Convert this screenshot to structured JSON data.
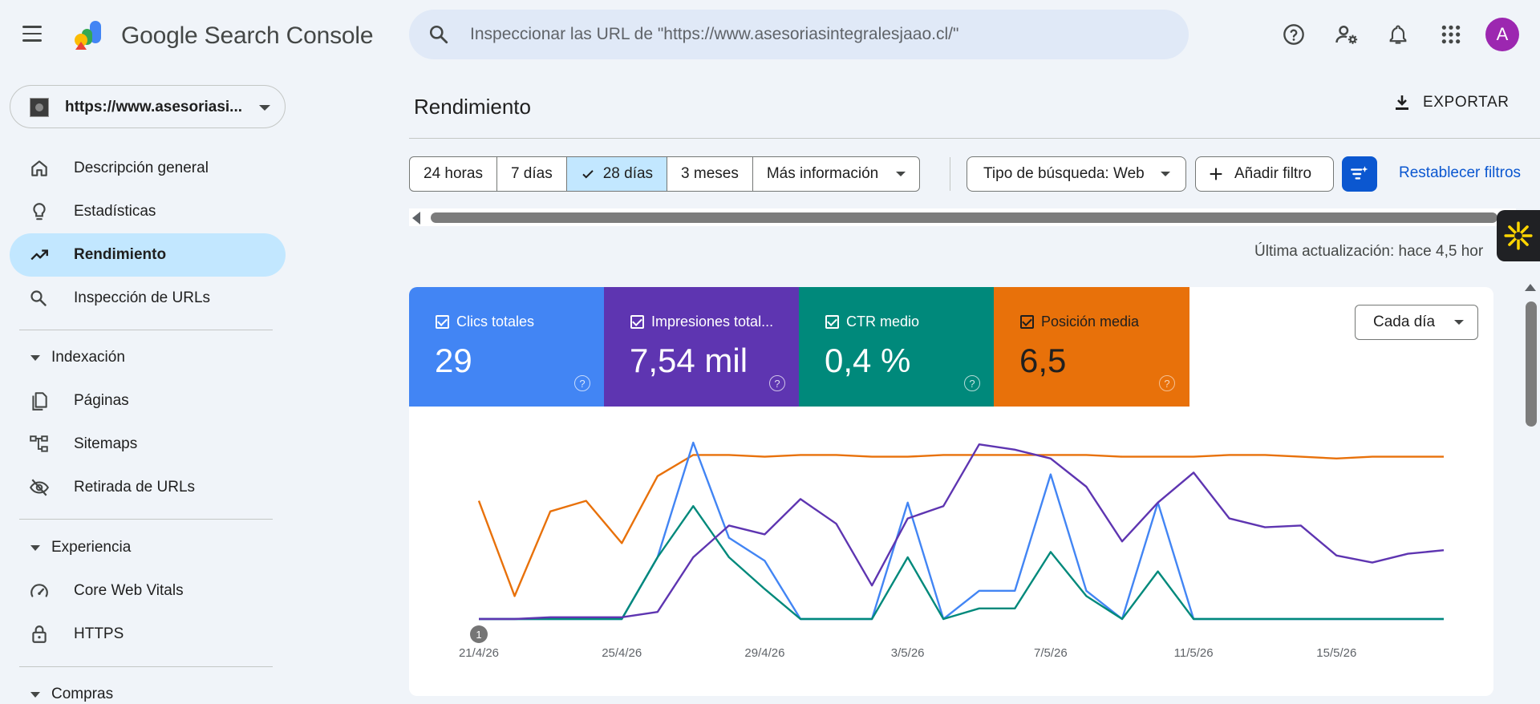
{
  "app": {
    "title": "Google Search Console"
  },
  "search": {
    "placeholder": "Inspeccionar las URL de \"https://www.asesoriasintegralesjaao.cl/\""
  },
  "account": {
    "initial": "A"
  },
  "property": {
    "label": "https://www.asesoriasi..."
  },
  "sidebar": {
    "items": [
      {
        "label": "Descripción general",
        "icon": "home-icon"
      },
      {
        "label": "Estadísticas",
        "icon": "lightbulb-icon"
      },
      {
        "label": "Rendimiento",
        "icon": "trending-up-icon",
        "active": true
      },
      {
        "label": "Inspección de URLs",
        "icon": "search-icon"
      }
    ],
    "sections": [
      {
        "title": "Indexación",
        "items": [
          {
            "label": "Páginas",
            "icon": "pages-icon"
          },
          {
            "label": "Sitemaps",
            "icon": "sitemap-icon"
          },
          {
            "label": "Retirada de URLs",
            "icon": "eye-off-icon"
          }
        ]
      },
      {
        "title": "Experiencia",
        "items": [
          {
            "label": "Core Web Vitals",
            "icon": "speed-icon"
          },
          {
            "label": "HTTPS",
            "icon": "lock-icon"
          }
        ]
      },
      {
        "title": "Compras",
        "items": []
      }
    ]
  },
  "main": {
    "title": "Rendimiento",
    "export_label": "EXPORTAR",
    "date_ranges": [
      "24 horas",
      "7 días",
      "28 días",
      "3 meses",
      "Más información"
    ],
    "selected_range": "28 días",
    "search_type": "Tipo de búsqueda: Web",
    "add_filter": "Añadir filtro",
    "reset_filters": "Restablecer filtros",
    "updated": "Última actualización: hace 4,5 hor",
    "granularity": "Cada día"
  },
  "metrics": [
    {
      "label": "Clics totales",
      "value": "29",
      "color": "#4285f4"
    },
    {
      "label": "Impresiones total...",
      "value": "7,54 mil",
      "color": "#5e35b1"
    },
    {
      "label": "CTR medio",
      "value": "0,4 %",
      "color": "#00897b"
    },
    {
      "label": "Posición media",
      "value": "6,5",
      "color": "#e8710a"
    }
  ],
  "annotation_marker": "1",
  "chart_data": {
    "type": "line",
    "x": [
      "21/4/26",
      "22/4/26",
      "23/4/26",
      "24/4/26",
      "25/4/26",
      "26/4/26",
      "27/4/26",
      "28/4/26",
      "29/4/26",
      "30/4/26",
      "1/5/26",
      "2/5/26",
      "3/5/26",
      "4/5/26",
      "5/5/26",
      "6/5/26",
      "7/5/26",
      "8/5/26",
      "9/5/26",
      "10/5/26",
      "11/5/26",
      "12/5/26",
      "13/5/26",
      "14/5/26",
      "15/5/26",
      "16/5/26",
      "17/5/26",
      "18/5/26"
    ],
    "xtick_labels": [
      "21/4/26",
      "25/4/26",
      "29/4/26",
      "3/5/26",
      "7/5/26",
      "11/5/26",
      "15/5/26"
    ],
    "normalized": true,
    "ylim": [
      0,
      1
    ],
    "series": [
      {
        "name": "Clics totales",
        "color": "#4285f4",
        "values": [
          0,
          0,
          0,
          0,
          0,
          0.35,
          1.0,
          0.46,
          0.33,
          0,
          0,
          0,
          0.66,
          0,
          0.16,
          0.16,
          0.82,
          0.16,
          0,
          0.66,
          0,
          0,
          0,
          0,
          0,
          0,
          0,
          0
        ]
      },
      {
        "name": "Impresiones totales",
        "color": "#5e35b1",
        "values": [
          0,
          0,
          0.01,
          0.01,
          0.01,
          0.04,
          0.35,
          0.53,
          0.48,
          0.68,
          0.54,
          0.19,
          0.57,
          0.64,
          0.99,
          0.96,
          0.91,
          0.75,
          0.44,
          0.66,
          0.83,
          0.57,
          0.52,
          0.53,
          0.36,
          0.32,
          0.37,
          0.39
        ]
      },
      {
        "name": "CTR medio",
        "color": "#00897b",
        "values": [
          0,
          0,
          0,
          0,
          0,
          0.35,
          0.64,
          0.35,
          0.17,
          0,
          0,
          0,
          0.35,
          0,
          0.06,
          0.06,
          0.38,
          0.13,
          0,
          0.27,
          0,
          0,
          0,
          0,
          0,
          0,
          0,
          0
        ]
      },
      {
        "name": "Posición media",
        "color": "#e8710a",
        "values": [
          0.67,
          0.13,
          0.61,
          0.67,
          0.43,
          0.81,
          0.93,
          0.93,
          0.92,
          0.93,
          0.93,
          0.92,
          0.92,
          0.93,
          0.93,
          0.93,
          0.93,
          0.93,
          0.92,
          0.92,
          0.92,
          0.93,
          0.93,
          0.92,
          0.91,
          0.92,
          0.92,
          0.92
        ]
      }
    ]
  }
}
